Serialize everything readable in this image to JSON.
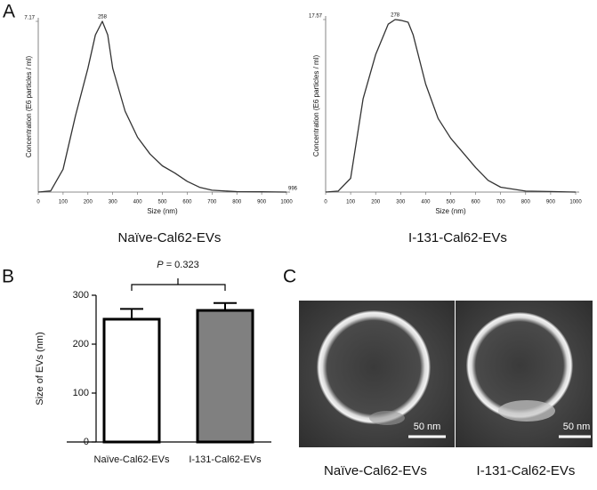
{
  "panels": {
    "a": "A",
    "b": "B",
    "c": "C"
  },
  "chart_data": [
    {
      "type": "line",
      "caption": "Naïve-Cal62-EVs",
      "xlabel": "Size (nm)",
      "ylabel": "Concentration (E6 particles / ml)",
      "peak_label": "258",
      "end_label": "996",
      "color": "#333333",
      "x": [
        0,
        50,
        100,
        150,
        200,
        230,
        258,
        280,
        300,
        350,
        400,
        450,
        500,
        550,
        600,
        650,
        700,
        800,
        900,
        1000
      ],
      "values": [
        0,
        0.05,
        0.96,
        3.2,
        5.2,
        6.6,
        7.17,
        6.6,
        5.2,
        3.4,
        2.3,
        1.6,
        1.1,
        0.8,
        0.45,
        0.2,
        0.08,
        0.02,
        0.01,
        0
      ],
      "xlim": [
        0,
        1000
      ],
      "xticks": [
        0,
        100,
        200,
        300,
        400,
        500,
        600,
        700,
        800,
        900,
        1000
      ],
      "ylim": [
        0,
        7.17
      ],
      "yticks": [
        7.17
      ]
    },
    {
      "type": "line",
      "caption": "I-131-Cal62-EVs",
      "xlabel": "Size (nm)",
      "ylabel": "Concentration (E6 particles / ml)",
      "peak_label": "278",
      "color": "#333333",
      "x": [
        0,
        50,
        100,
        150,
        200,
        250,
        278,
        300,
        330,
        350,
        400,
        450,
        500,
        550,
        600,
        650,
        700,
        800,
        900,
        1000
      ],
      "values": [
        0,
        0.1,
        1.4,
        9.5,
        14,
        17.1,
        17.57,
        17.5,
        17.3,
        16,
        11,
        7.5,
        5.5,
        4,
        2.5,
        1.2,
        0.5,
        0.1,
        0.05,
        0
      ],
      "xlim": [
        0,
        1000
      ],
      "xticks": [
        0,
        100,
        200,
        300,
        400,
        500,
        600,
        700,
        800,
        900,
        1000
      ],
      "ylim": [
        0,
        17.57
      ],
      "yticks": [
        17.57
      ]
    },
    {
      "type": "bar",
      "ylabel": "Size of EVs (nm)",
      "categories": [
        "Naïve-Cal62-EVs",
        "I-131-Cal62-EVs"
      ],
      "values": [
        251,
        269
      ],
      "errors": [
        21,
        15
      ],
      "colors": [
        "#ffffff",
        "#808080"
      ],
      "annotation": {
        "symbol": "P",
        "text": "= 0.323"
      },
      "ylim": [
        0,
        300
      ],
      "yticks": [
        0,
        100,
        200,
        300
      ]
    }
  ],
  "images": [
    {
      "caption": "Naïve-Cal62-EVs",
      "scale_bar": "50 nm"
    },
    {
      "caption": "I-131-Cal62-EVs",
      "scale_bar": "50 nm"
    }
  ]
}
